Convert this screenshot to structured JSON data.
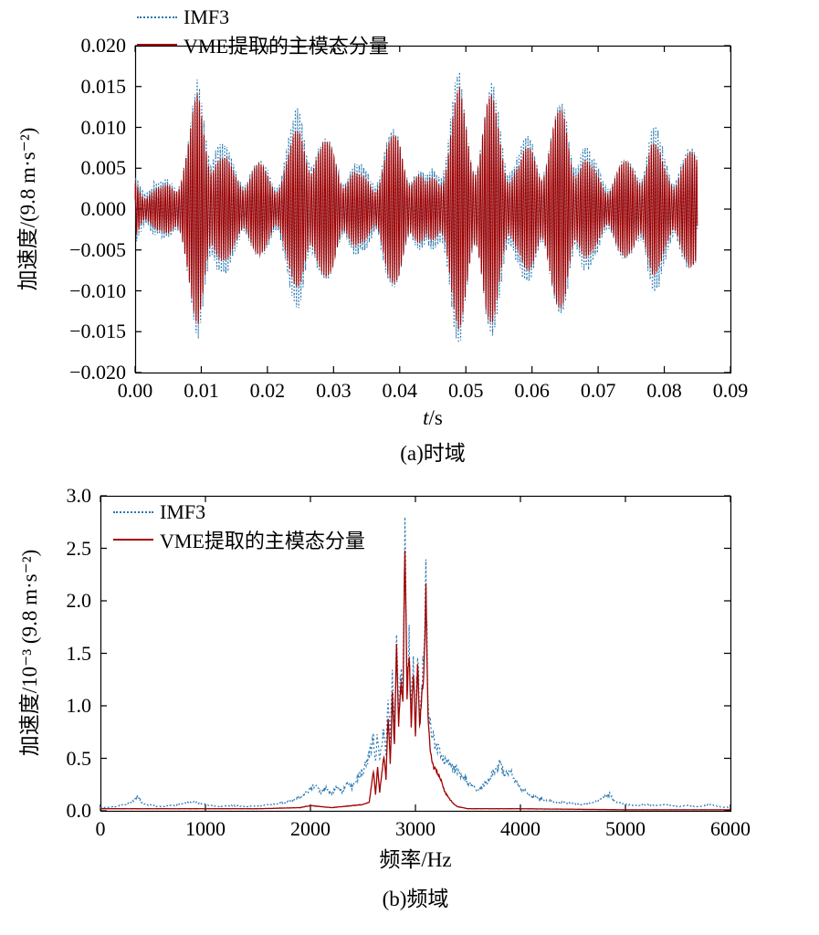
{
  "figure": {
    "background": "#ffffff",
    "axis_color": "#000000"
  },
  "chart_data": [
    {
      "type": "line",
      "caption": "(a)时域",
      "xlabel_var": "t",
      "xlabel_unit": "/s",
      "ylabel": "加速度/(9.8 m·s⁻²)",
      "xlim": [
        0,
        0.09
      ],
      "ylim": [
        -0.02,
        0.02
      ],
      "xtick_labels": [
        "0.00",
        "0.01",
        "0.02",
        "0.03",
        "0.04",
        "0.05",
        "0.06",
        "0.07",
        "0.08",
        "0.09"
      ],
      "ytick_labels": [
        "−0.020",
        "−0.015",
        "−0.010",
        "−0.005",
        "0.000",
        "0.005",
        "0.010",
        "0.015",
        "0.020"
      ],
      "grid": false,
      "legend_position": "top-left",
      "series": [
        {
          "name": "IMF3",
          "color": "#2878b0",
          "style": "dotted"
        },
        {
          "name": "VME提取的主模态分量",
          "color": "#a00000",
          "style": "solid"
        }
      ],
      "signal": {
        "t_end": 0.085,
        "carriers_hz": [
          2900,
          3100
        ],
        "carrier_weights": [
          0.8,
          0.35
        ],
        "imf3_envelope_scale": 1.12,
        "envelope_keypoints": [
          [
            0.0,
            0.004
          ],
          [
            0.002,
            0.003
          ],
          [
            0.004,
            0.0025
          ],
          [
            0.006,
            0.0045
          ],
          [
            0.008,
            0.009
          ],
          [
            0.0095,
            0.015
          ],
          [
            0.0105,
            0.013
          ],
          [
            0.012,
            0.01
          ],
          [
            0.013,
            0.007
          ],
          [
            0.015,
            0.005
          ],
          [
            0.017,
            0.006
          ],
          [
            0.019,
            0.0055
          ],
          [
            0.021,
            0.0045
          ],
          [
            0.023,
            0.007
          ],
          [
            0.025,
            0.011
          ],
          [
            0.026,
            0.0115
          ],
          [
            0.028,
            0.0085
          ],
          [
            0.03,
            0.008
          ],
          [
            0.032,
            0.006
          ],
          [
            0.034,
            0.004
          ],
          [
            0.036,
            0.0045
          ],
          [
            0.038,
            0.0085
          ],
          [
            0.04,
            0.0095
          ],
          [
            0.042,
            0.0065
          ],
          [
            0.044,
            0.003
          ],
          [
            0.046,
            0.006
          ],
          [
            0.048,
            0.013
          ],
          [
            0.049,
            0.015
          ],
          [
            0.051,
            0.0095
          ],
          [
            0.053,
            0.014
          ],
          [
            0.054,
            0.014
          ],
          [
            0.056,
            0.0085
          ],
          [
            0.058,
            0.006
          ],
          [
            0.06,
            0.0085
          ],
          [
            0.062,
            0.009
          ],
          [
            0.064,
            0.012
          ],
          [
            0.065,
            0.013
          ],
          [
            0.067,
            0.0085
          ],
          [
            0.069,
            0.005
          ],
          [
            0.071,
            0.0045
          ],
          [
            0.073,
            0.0055
          ],
          [
            0.075,
            0.006
          ],
          [
            0.077,
            0.008
          ],
          [
            0.078,
            0.009
          ],
          [
            0.08,
            0.006
          ],
          [
            0.082,
            0.0065
          ],
          [
            0.084,
            0.007
          ],
          [
            0.085,
            0.007
          ]
        ]
      }
    },
    {
      "type": "line",
      "caption": "(b)频域",
      "xlabel": "频率/Hz",
      "ylabel": "加速度/10⁻³ (9.8 m·s⁻²)",
      "xlim": [
        0,
        6000
      ],
      "ylim": [
        0,
        3.0
      ],
      "xtick_labels": [
        "0",
        "1000",
        "2000",
        "3000",
        "4000",
        "5000",
        "6000"
      ],
      "ytick_labels": [
        "0.0",
        "0.5",
        "1.0",
        "1.5",
        "2.0",
        "2.5",
        "3.0"
      ],
      "grid": false,
      "legend_position": "top-left",
      "series": [
        {
          "name": "IMF3",
          "color": "#2878b0",
          "style": "dotted",
          "spectrum_keypoints": [
            [
              0,
              0.03
            ],
            [
              150,
              0.04
            ],
            [
              300,
              0.08
            ],
            [
              350,
              0.14
            ],
            [
              400,
              0.07
            ],
            [
              550,
              0.04
            ],
            [
              700,
              0.05
            ],
            [
              850,
              0.09
            ],
            [
              950,
              0.07
            ],
            [
              1100,
              0.04
            ],
            [
              1250,
              0.05
            ],
            [
              1400,
              0.04
            ],
            [
              1550,
              0.05
            ],
            [
              1700,
              0.07
            ],
            [
              1850,
              0.1
            ],
            [
              1950,
              0.16
            ],
            [
              2050,
              0.26
            ],
            [
              2100,
              0.18
            ],
            [
              2150,
              0.22
            ],
            [
              2200,
              0.16
            ],
            [
              2250,
              0.24
            ],
            [
              2300,
              0.18
            ],
            [
              2350,
              0.26
            ],
            [
              2400,
              0.22
            ],
            [
              2450,
              0.3
            ],
            [
              2500,
              0.38
            ],
            [
              2550,
              0.5
            ],
            [
              2600,
              0.7
            ],
            [
              2620,
              0.45
            ],
            [
              2640,
              0.75
            ],
            [
              2660,
              0.5
            ],
            [
              2700,
              0.8
            ],
            [
              2720,
              0.55
            ],
            [
              2740,
              1.1
            ],
            [
              2760,
              0.65
            ],
            [
              2780,
              1.25
            ],
            [
              2800,
              0.8
            ],
            [
              2820,
              1.65
            ],
            [
              2840,
              0.95
            ],
            [
              2860,
              1.35
            ],
            [
              2880,
              1.1
            ],
            [
              2900,
              2.56
            ],
            [
              2920,
              1.25
            ],
            [
              2940,
              1.62
            ],
            [
              2960,
              1.0
            ],
            [
              2980,
              1.45
            ],
            [
              3000,
              0.9
            ],
            [
              3020,
              1.55
            ],
            [
              3040,
              0.95
            ],
            [
              3060,
              1.25
            ],
            [
              3080,
              1.42
            ],
            [
              3100,
              2.2
            ],
            [
              3120,
              1.05
            ],
            [
              3140,
              0.85
            ],
            [
              3170,
              0.68
            ],
            [
              3200,
              0.6
            ],
            [
              3250,
              0.52
            ],
            [
              3300,
              0.46
            ],
            [
              3350,
              0.42
            ],
            [
              3400,
              0.38
            ],
            [
              3450,
              0.32
            ],
            [
              3500,
              0.27
            ],
            [
              3550,
              0.22
            ],
            [
              3600,
              0.2
            ],
            [
              3650,
              0.24
            ],
            [
              3700,
              0.3
            ],
            [
              3750,
              0.38
            ],
            [
              3800,
              0.46
            ],
            [
              3850,
              0.34
            ],
            [
              3900,
              0.4
            ],
            [
              3950,
              0.28
            ],
            [
              4000,
              0.22
            ],
            [
              4100,
              0.14
            ],
            [
              4200,
              0.11
            ],
            [
              4300,
              0.09
            ],
            [
              4400,
              0.08
            ],
            [
              4500,
              0.07
            ],
            [
              4600,
              0.06
            ],
            [
              4700,
              0.08
            ],
            [
              4800,
              0.13
            ],
            [
              4850,
              0.16
            ],
            [
              4900,
              0.09
            ],
            [
              5000,
              0.06
            ],
            [
              5100,
              0.05
            ],
            [
              5200,
              0.06
            ],
            [
              5300,
              0.05
            ],
            [
              5400,
              0.06
            ],
            [
              5500,
              0.04
            ],
            [
              5600,
              0.05
            ],
            [
              5700,
              0.04
            ],
            [
              5800,
              0.06
            ],
            [
              5900,
              0.04
            ],
            [
              6000,
              0.03
            ]
          ]
        },
        {
          "name": "VME提取的主模态分量",
          "color": "#a00000",
          "style": "solid",
          "spectrum_keypoints": [
            [
              0,
              0.02
            ],
            [
              500,
              0.02
            ],
            [
              1000,
              0.02
            ],
            [
              1500,
              0.02
            ],
            [
              1900,
              0.03
            ],
            [
              2000,
              0.05
            ],
            [
              2100,
              0.04
            ],
            [
              2200,
              0.03
            ],
            [
              2300,
              0.04
            ],
            [
              2400,
              0.05
            ],
            [
              2500,
              0.06
            ],
            [
              2560,
              0.08
            ],
            [
              2600,
              0.38
            ],
            [
              2620,
              0.15
            ],
            [
              2640,
              0.42
            ],
            [
              2660,
              0.18
            ],
            [
              2700,
              0.52
            ],
            [
              2720,
              0.3
            ],
            [
              2740,
              0.92
            ],
            [
              2760,
              0.45
            ],
            [
              2780,
              1.1
            ],
            [
              2800,
              0.62
            ],
            [
              2820,
              1.62
            ],
            [
              2840,
              0.8
            ],
            [
              2860,
              1.22
            ],
            [
              2880,
              1.0
            ],
            [
              2900,
              2.52
            ],
            [
              2920,
              1.1
            ],
            [
              2940,
              1.52
            ],
            [
              2960,
              0.82
            ],
            [
              2980,
              1.35
            ],
            [
              3000,
              0.72
            ],
            [
              3020,
              1.45
            ],
            [
              3040,
              0.8
            ],
            [
              3060,
              1.1
            ],
            [
              3080,
              1.3
            ],
            [
              3100,
              2.1
            ],
            [
              3120,
              0.9
            ],
            [
              3140,
              0.6
            ],
            [
              3170,
              0.42
            ],
            [
              3200,
              0.38
            ],
            [
              3240,
              0.3
            ],
            [
              3280,
              0.18
            ],
            [
              3320,
              0.12
            ],
            [
              3360,
              0.07
            ],
            [
              3400,
              0.04
            ],
            [
              3500,
              0.02
            ],
            [
              4000,
              0.02
            ],
            [
              5000,
              0.01
            ],
            [
              6000,
              0.01
            ]
          ]
        }
      ]
    }
  ]
}
